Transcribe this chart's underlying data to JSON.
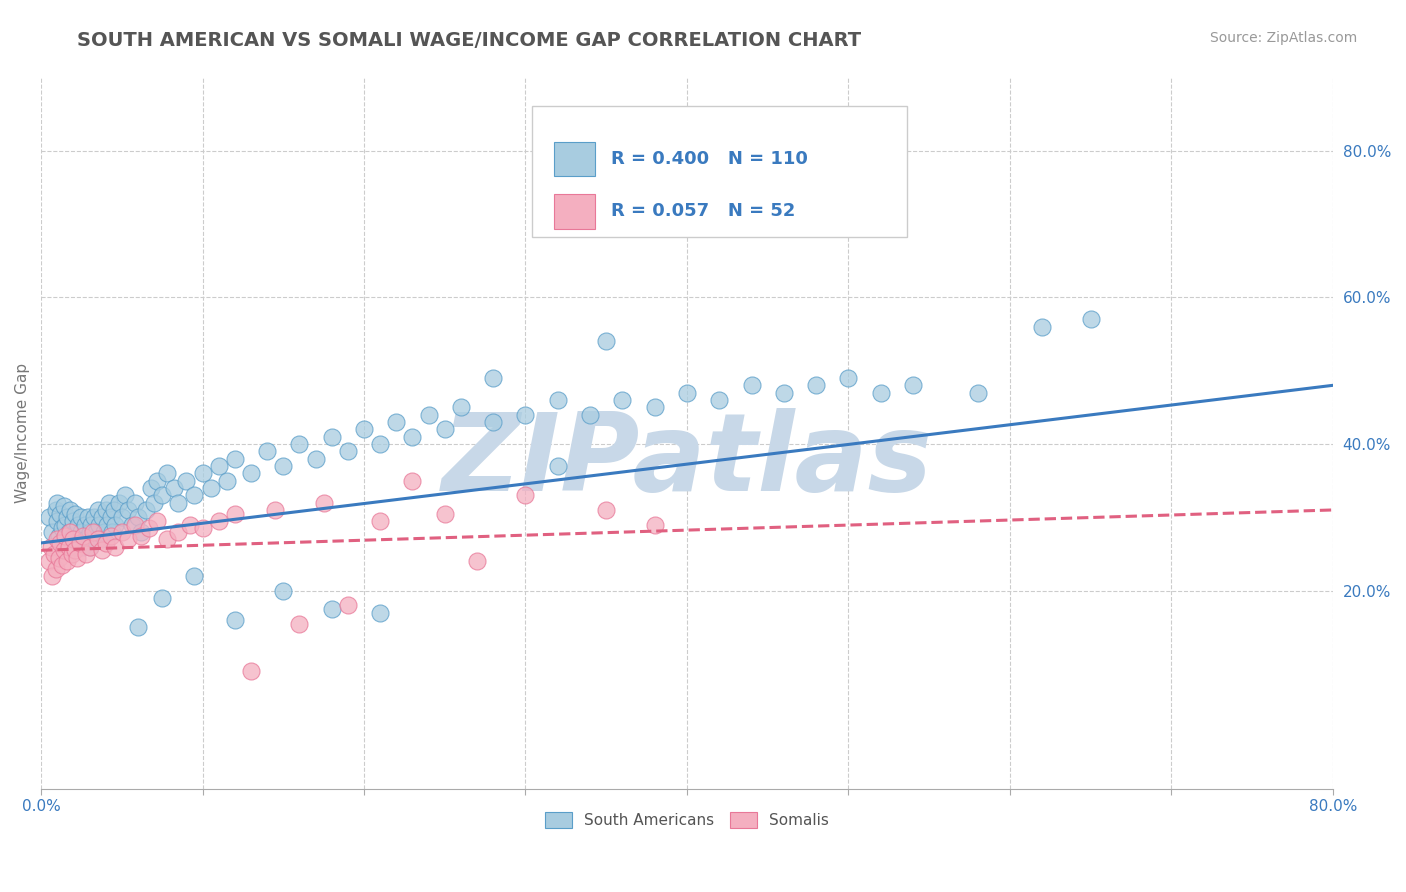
{
  "title": "SOUTH AMERICAN VS SOMALI WAGE/INCOME GAP CORRELATION CHART",
  "source_text": "Source: ZipAtlas.com",
  "ylabel": "Wage/Income Gap",
  "xlim": [
    0.0,
    0.8
  ],
  "ylim": [
    -0.07,
    0.9
  ],
  "x_ticks": [
    0.0,
    0.1,
    0.2,
    0.3,
    0.4,
    0.5,
    0.6,
    0.7,
    0.8
  ],
  "x_tick_labels": [
    "0.0%",
    "",
    "",
    "",
    "",
    "",
    "",
    "",
    "80.0%"
  ],
  "y_ticks_right": [
    0.2,
    0.4,
    0.6,
    0.8
  ],
  "y_tick_labels_right": [
    "20.0%",
    "40.0%",
    "60.0%",
    "80.0%"
  ],
  "legend_r1": "0.400",
  "legend_n1": "110",
  "legend_r2": "0.057",
  "legend_n2": "52",
  "blue_color": "#a8cce0",
  "pink_color": "#f4afc0",
  "blue_edge": "#5a9ec9",
  "pink_edge": "#e87898",
  "trend_blue": "#3a7abf",
  "trend_pink": "#e06080",
  "legend_text_color": "#3a7abf",
  "title_color": "#555555",
  "watermark_color": "#c8d8e8",
  "background_color": "#ffffff",
  "grid_color": "#cccccc",
  "south_american_x": [
    0.005,
    0.007,
    0.009,
    0.01,
    0.01,
    0.011,
    0.012,
    0.013,
    0.014,
    0.015,
    0.015,
    0.016,
    0.017,
    0.018,
    0.019,
    0.02,
    0.02,
    0.021,
    0.022,
    0.022,
    0.023,
    0.024,
    0.025,
    0.025,
    0.026,
    0.027,
    0.028,
    0.029,
    0.03,
    0.03,
    0.031,
    0.032,
    0.033,
    0.034,
    0.035,
    0.036,
    0.037,
    0.038,
    0.039,
    0.04,
    0.041,
    0.042,
    0.043,
    0.044,
    0.045,
    0.046,
    0.048,
    0.05,
    0.052,
    0.054,
    0.056,
    0.058,
    0.06,
    0.062,
    0.065,
    0.068,
    0.07,
    0.072,
    0.075,
    0.078,
    0.082,
    0.085,
    0.09,
    0.095,
    0.1,
    0.105,
    0.11,
    0.115,
    0.12,
    0.13,
    0.14,
    0.15,
    0.16,
    0.17,
    0.18,
    0.19,
    0.2,
    0.21,
    0.22,
    0.23,
    0.24,
    0.25,
    0.26,
    0.28,
    0.3,
    0.32,
    0.34,
    0.36,
    0.38,
    0.4,
    0.42,
    0.44,
    0.46,
    0.48,
    0.5,
    0.52,
    0.54,
    0.58,
    0.62,
    0.65,
    0.35,
    0.28,
    0.32,
    0.15,
    0.18,
    0.21,
    0.12,
    0.095,
    0.075,
    0.06
  ],
  "south_american_y": [
    0.3,
    0.28,
    0.31,
    0.295,
    0.32,
    0.275,
    0.305,
    0.285,
    0.315,
    0.29,
    0.27,
    0.3,
    0.28,
    0.31,
    0.265,
    0.295,
    0.275,
    0.305,
    0.285,
    0.26,
    0.29,
    0.27,
    0.3,
    0.28,
    0.26,
    0.29,
    0.27,
    0.3,
    0.28,
    0.26,
    0.29,
    0.27,
    0.3,
    0.28,
    0.31,
    0.29,
    0.27,
    0.3,
    0.28,
    0.31,
    0.29,
    0.32,
    0.3,
    0.28,
    0.31,
    0.29,
    0.32,
    0.3,
    0.33,
    0.31,
    0.29,
    0.32,
    0.3,
    0.28,
    0.31,
    0.34,
    0.32,
    0.35,
    0.33,
    0.36,
    0.34,
    0.32,
    0.35,
    0.33,
    0.36,
    0.34,
    0.37,
    0.35,
    0.38,
    0.36,
    0.39,
    0.37,
    0.4,
    0.38,
    0.41,
    0.39,
    0.42,
    0.4,
    0.43,
    0.41,
    0.44,
    0.42,
    0.45,
    0.43,
    0.44,
    0.46,
    0.44,
    0.46,
    0.45,
    0.47,
    0.46,
    0.48,
    0.47,
    0.48,
    0.49,
    0.47,
    0.48,
    0.47,
    0.56,
    0.57,
    0.54,
    0.49,
    0.37,
    0.2,
    0.175,
    0.17,
    0.16,
    0.22,
    0.19,
    0.15
  ],
  "somali_x": [
    0.005,
    0.006,
    0.007,
    0.008,
    0.009,
    0.01,
    0.011,
    0.012,
    0.013,
    0.014,
    0.015,
    0.016,
    0.017,
    0.018,
    0.019,
    0.02,
    0.021,
    0.022,
    0.024,
    0.026,
    0.028,
    0.03,
    0.032,
    0.035,
    0.038,
    0.04,
    0.043,
    0.046,
    0.05,
    0.054,
    0.058,
    0.062,
    0.067,
    0.072,
    0.078,
    0.085,
    0.092,
    0.1,
    0.11,
    0.12,
    0.13,
    0.145,
    0.16,
    0.175,
    0.19,
    0.21,
    0.23,
    0.25,
    0.27,
    0.3,
    0.35,
    0.38
  ],
  "somali_y": [
    0.24,
    0.26,
    0.22,
    0.25,
    0.23,
    0.27,
    0.245,
    0.265,
    0.235,
    0.255,
    0.275,
    0.24,
    0.26,
    0.28,
    0.25,
    0.27,
    0.255,
    0.245,
    0.265,
    0.275,
    0.25,
    0.26,
    0.28,
    0.27,
    0.255,
    0.265,
    0.275,
    0.26,
    0.28,
    0.27,
    0.29,
    0.275,
    0.285,
    0.295,
    0.27,
    0.28,
    0.29,
    0.285,
    0.295,
    0.305,
    0.09,
    0.31,
    0.155,
    0.32,
    0.18,
    0.295,
    0.35,
    0.305,
    0.24,
    0.33,
    0.31,
    0.29
  ],
  "blue_trend_x": [
    0.0,
    0.8
  ],
  "blue_trend_y": [
    0.265,
    0.48
  ],
  "pink_trend_x": [
    0.0,
    0.8
  ],
  "pink_trend_y": [
    0.255,
    0.31
  ]
}
